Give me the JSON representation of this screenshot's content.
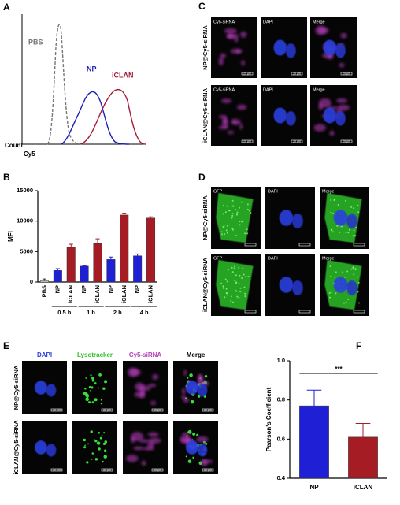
{
  "panel_labels": [
    "A",
    "B",
    "C",
    "D",
    "E",
    "F"
  ],
  "flow": {
    "series": [
      {
        "name": "PBS",
        "color": "#777777"
      },
      {
        "name": "NP",
        "color": "#1f1fb8"
      },
      {
        "name": "iCLAN",
        "color": "#a51c3a"
      }
    ],
    "ylabel": "Count",
    "xlabel": "Cy5"
  },
  "chart_data": [
    {
      "type": "bar",
      "ylabel": "MFI",
      "categories": [
        "PBS",
        "NP",
        "iCLAN",
        "NP",
        "iCLAN",
        "NP",
        "iCLAN",
        "NP",
        "iCLAN"
      ],
      "groups": [
        "0.5 h",
        "1 h",
        "2 h",
        "4 h"
      ],
      "values": [
        200,
        1900,
        5700,
        2600,
        6300,
        3700,
        11000,
        4300,
        10500
      ],
      "errors": [
        300,
        300,
        500,
        100,
        800,
        400,
        300,
        300,
        200
      ],
      "colors": [
        "#e8e8e8",
        "#1f1fd6",
        "#a51c24",
        "#1f1fd6",
        "#a51c24",
        "#1f1fd6",
        "#a51c24",
        "#1f1fd6",
        "#a51c24"
      ],
      "ylim": [
        0,
        15000
      ],
      "yticks": [
        0,
        5000,
        10000,
        15000
      ]
    },
    {
      "type": "bar",
      "ylabel": "Pearson's Coefficient",
      "categories": [
        "NP",
        "iCLAN"
      ],
      "values": [
        0.77,
        0.61
      ],
      "errors": [
        0.08,
        0.07
      ],
      "colors": [
        "#1f1fd6",
        "#a51c24"
      ],
      "ylim": [
        0.4,
        1.0
      ],
      "yticks": [
        0.4,
        0.6,
        0.8,
        {
          "value": 1.0,
          "label": "1.0"
        }
      ],
      "annotation": "***"
    }
  ],
  "panel_c": {
    "rows": [
      "NP@Cy5-siRNA",
      "iCLAN@Cy5-siRNA"
    ],
    "channels": [
      "Cy5-siRNA",
      "DAPI",
      "Merge"
    ],
    "scale_bar": "20 μm"
  },
  "panel_d": {
    "rows": [
      "NP@Cy5-siRNA",
      "iCLAN@Cy5-siRNA"
    ],
    "channels": [
      "GFP",
      "DAPI",
      "Merge"
    ]
  },
  "panel_e": {
    "rows": [
      "NP@Cy5-siRNA",
      "iCLAN@Cy5-siRNA"
    ],
    "channels": [
      "DAPI",
      "Lysotracker",
      "Cy5-siRNA",
      "Merge"
    ],
    "scale_bar": "20 μm"
  }
}
